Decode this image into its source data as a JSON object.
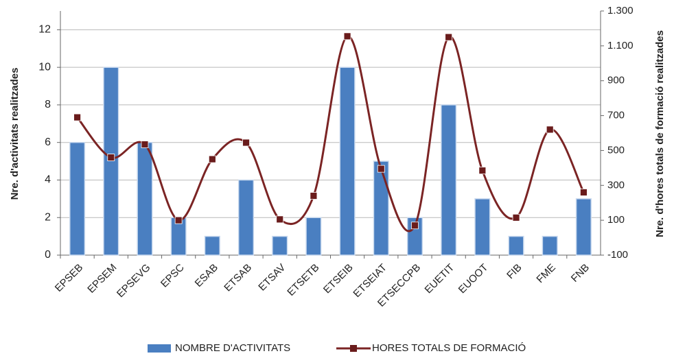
{
  "chart_data": {
    "type": "bar",
    "categories": [
      "EPSEB",
      "EPSEM",
      "EPSEVG",
      "EPSC",
      "ESAB",
      "ETSAB",
      "ETSAV",
      "ETSETB",
      "ETSEIB",
      "ETSEIAT",
      "ETSECCPB",
      "EUETIT",
      "EUOOT",
      "FIB",
      "FME",
      "FNB"
    ],
    "series": [
      {
        "name": "NOMBRE D'ACTIVITATS",
        "type": "bar",
        "color": "#4a7fc1",
        "values": [
          6,
          10,
          6,
          2,
          1,
          4,
          1,
          2,
          10,
          5,
          2,
          8,
          3,
          1,
          1,
          3
        ]
      },
      {
        "name": "HORES TOTALS DE FORMACIÓ",
        "type": "line",
        "axis": "y2",
        "color": "#7b2424",
        "values": [
          690,
          460,
          535,
          100,
          450,
          545,
          105,
          240,
          1155,
          395,
          70,
          1150,
          385,
          115,
          620,
          260
        ]
      }
    ],
    "y_label": "Nre. d'activitats realitzades",
    "y2_label": "Nre. d'hores totals de formació realitzades",
    "ylim": [
      0,
      13
    ],
    "yticks": [
      0,
      2,
      4,
      6,
      8,
      10,
      12
    ],
    "y2lim": [
      -100,
      1300
    ],
    "y2ticks": [
      -100,
      100,
      300,
      500,
      700,
      900,
      {
        "value": 1100,
        "label": "1.100"
      },
      {
        "value": 1300,
        "label": "1.300"
      }
    ],
    "grid": true,
    "legend": "bottom"
  }
}
